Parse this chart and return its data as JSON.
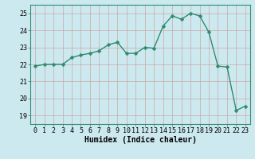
{
  "x": [
    0,
    1,
    2,
    3,
    4,
    5,
    6,
    7,
    8,
    9,
    10,
    11,
    12,
    13,
    14,
    15,
    16,
    17,
    18,
    19,
    20,
    21,
    22,
    23
  ],
  "y": [
    21.9,
    22.0,
    22.0,
    22.0,
    22.4,
    22.55,
    22.65,
    22.8,
    23.15,
    23.3,
    22.65,
    22.65,
    23.0,
    22.95,
    24.25,
    24.85,
    24.65,
    25.0,
    24.85,
    23.9,
    21.9,
    21.85,
    19.3,
    19.55
  ],
  "xlabel": "Humidex (Indice chaleur)",
  "ylabel": "",
  "ylim": [
    18.5,
    25.5
  ],
  "xlim": [
    -0.5,
    23.5
  ],
  "yticks": [
    19,
    20,
    21,
    22,
    23,
    24,
    25
  ],
  "xticks": [
    0,
    1,
    2,
    3,
    4,
    5,
    6,
    7,
    8,
    9,
    10,
    11,
    12,
    13,
    14,
    15,
    16,
    17,
    18,
    19,
    20,
    21,
    22,
    23
  ],
  "line_color": "#2e8b6e",
  "marker": "D",
  "marker_size": 2.5,
  "bg_color": "#cde9f0",
  "plot_bg_color": "#cde9f0",
  "grid_color_h": "#c8a8a8",
  "grid_color_v": "#c8a8a8",
  "xlabel_fontsize": 7,
  "tick_fontsize": 6,
  "line_width": 1.0
}
